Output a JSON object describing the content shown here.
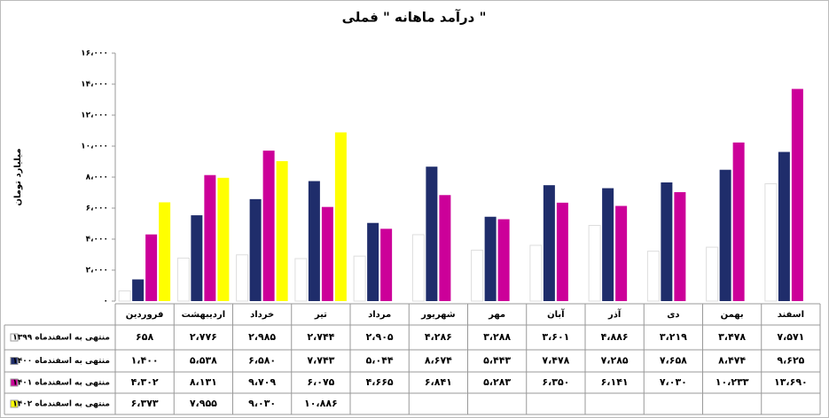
{
  "chart_data": {
    "type": "bar",
    "title": "درآمد ماهانه \" فملی \"",
    "y_label": "میلیارد تومان",
    "categories": [
      "فروردین",
      "اردیبهشت",
      "خرداد",
      "تیر",
      "مرداد",
      "شهریور",
      "مهر",
      "آبان",
      "آذر",
      "دی",
      "بهمن",
      "اسفند"
    ],
    "series": [
      {
        "name": "منتهی به اسفندماه ۱۳۹۹",
        "color": "#ffffff",
        "values": [
          658,
          2776,
          2985,
          2744,
          2905,
          4286,
          3288,
          3601,
          4886,
          3219,
          3478,
          7571
        ],
        "value_labels": [
          "۶۵۸",
          "۲،۷۷۶",
          "۲،۹۸۵",
          "۲،۷۴۴",
          "۲،۹۰۵",
          "۴،۲۸۶",
          "۳،۲۸۸",
          "۳،۶۰۱",
          "۴،۸۸۶",
          "۳،۲۱۹",
          "۳،۴۷۸",
          "۷،۵۷۱"
        ]
      },
      {
        "name": "منتهی به اسفندماه ۱۴۰۰",
        "color": "#1f2d6b",
        "values": [
          1400,
          5538,
          6580,
          7743,
          5044,
          8674,
          5443,
          7478,
          7285,
          7658,
          8474,
          9625
        ],
        "value_labels": [
          "۱،۴۰۰",
          "۵،۵۳۸",
          "۶،۵۸۰",
          "۷،۷۴۳",
          "۵،۰۴۴",
          "۸،۶۷۴",
          "۵،۴۴۳",
          "۷،۴۷۸",
          "۷،۲۸۵",
          "۷،۶۵۸",
          "۸،۴۷۴",
          "۹،۶۲۵"
        ]
      },
      {
        "name": "منتهی به اسفندماه ۱۴۰۱",
        "color": "#cc0099",
        "values": [
          4302,
          8131,
          9709,
          6075,
          4665,
          6841,
          5283,
          6350,
          6141,
          7030,
          10233,
          13690
        ],
        "value_labels": [
          "۴،۳۰۲",
          "۸،۱۳۱",
          "۹،۷۰۹",
          "۶،۰۷۵",
          "۴،۶۶۵",
          "۶،۸۴۱",
          "۵،۲۸۳",
          "۶،۳۵۰",
          "۶،۱۴۱",
          "۷،۰۳۰",
          "۱۰،۲۳۳",
          "۱۳،۶۹۰"
        ]
      },
      {
        "name": "منتهی به اسفندماه ۱۴۰۲",
        "color": "#ffff00",
        "values": [
          6373,
          7955,
          9030,
          10886,
          null,
          null,
          null,
          null,
          null,
          null,
          null,
          null
        ],
        "value_labels": [
          "۶،۳۷۳",
          "۷،۹۵۵",
          "۹،۰۳۰",
          "۱۰،۸۸۶",
          null,
          null,
          null,
          null,
          null,
          null,
          null,
          null
        ]
      }
    ],
    "ylim": [
      0,
      16000
    ],
    "yticks": [
      {
        "value": 0,
        "label": "۰"
      },
      {
        "value": 2000,
        "label": "۲،۰۰۰"
      },
      {
        "value": 4000,
        "label": "۴،۰۰۰"
      },
      {
        "value": 6000,
        "label": "۶،۰۰۰"
      },
      {
        "value": 8000,
        "label": "۸،۰۰۰"
      },
      {
        "value": 10000,
        "label": "۱۰،۰۰۰"
      },
      {
        "value": 12000,
        "label": "۱۲،۰۰۰"
      },
      {
        "value": 14000,
        "label": "۱۴،۰۰۰"
      },
      {
        "value": 16000,
        "label": "۱۶،۰۰۰"
      }
    ]
  }
}
